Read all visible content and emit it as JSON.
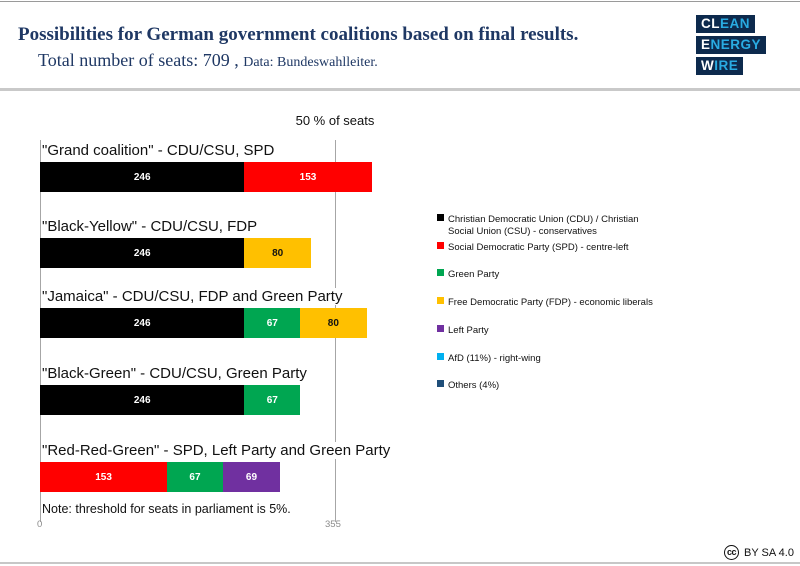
{
  "header": {
    "title": "Possibilities for German government coalitions based on final results.",
    "subtitle_main": "Total number of seats: 709 ,",
    "subtitle_data": "Data: Bundeswahlleiter.",
    "logo": {
      "rows": [
        {
          "white": "CL",
          "blue": "EAN"
        },
        {
          "white": "E",
          "blue": "NERGY"
        },
        {
          "white": "W",
          "blue": "IRE"
        }
      ],
      "bg_color": "#0d2a4d",
      "accent_color": "#29abe2"
    }
  },
  "chart_data": {
    "type": "bar",
    "orientation": "horizontal-stacked",
    "title": "Possibilities for German government coalitions based on final results.",
    "total_seats": 709,
    "xlabel": "",
    "ylabel": "",
    "axis": {
      "x_min": 0,
      "x_gridline_value": 355,
      "gridline_title": "50 % of seats",
      "tick_labels": [
        "0",
        "355"
      ],
      "grid_on": true
    },
    "legend_position": "right",
    "legend": [
      {
        "label": "Christian Democratic Union (CDU) / Christian\nSocial Union (CSU) - conservatives",
        "color": "#000000"
      },
      {
        "label": "Social Democratic Party (SPD) - centre-left",
        "color": "#ff0000"
      },
      {
        "label": "Green Party",
        "color": "#00a651"
      },
      {
        "label": "Free Democratic Party (FDP) - economic liberals",
        "color": "#ffc000"
      },
      {
        "label": "Left Party",
        "color": "#7030a0"
      },
      {
        "label": "AfD (11%) - right-wing",
        "color": "#00b0f0"
      },
      {
        "label": "Others (4%)",
        "color": "#1f4e79"
      }
    ],
    "coalitions": [
      {
        "label": "\"Grand coalition\" - CDU/CSU, SPD",
        "segments": [
          {
            "party": "CDU/CSU",
            "value": 246,
            "color": "#000000",
            "label_color": "#ffffff"
          },
          {
            "party": "SPD",
            "value": 153,
            "color": "#ff0000",
            "label_color": "#ffffff"
          }
        ]
      },
      {
        "label": "\"Black-Yellow\" - CDU/CSU, FDP",
        "segments": [
          {
            "party": "CDU/CSU",
            "value": 246,
            "color": "#000000",
            "label_color": "#ffffff"
          },
          {
            "party": "FDP",
            "value": 80,
            "color": "#ffc000",
            "label_color": "#111111"
          }
        ]
      },
      {
        "label": "\"Jamaica\" - CDU/CSU, FDP and Green Party",
        "segments": [
          {
            "party": "CDU/CSU",
            "value": 246,
            "color": "#000000",
            "label_color": "#ffffff"
          },
          {
            "party": "Green Party",
            "value": 67,
            "color": "#00a651",
            "label_color": "#ffffff"
          },
          {
            "party": "FDP",
            "value": 80,
            "color": "#ffc000",
            "label_color": "#111111"
          }
        ]
      },
      {
        "label": "\"Black-Green\" - CDU/CSU, Green Party",
        "segments": [
          {
            "party": "CDU/CSU",
            "value": 246,
            "color": "#000000",
            "label_color": "#ffffff"
          },
          {
            "party": "Green Party",
            "value": 67,
            "color": "#00a651",
            "label_color": "#ffffff"
          }
        ]
      },
      {
        "label": "\"Red-Red-Green\" - SPD, Left Party and Green Party",
        "segments": [
          {
            "party": "SPD",
            "value": 153,
            "color": "#ff0000",
            "label_color": "#ffffff"
          },
          {
            "party": "Green Party",
            "value": 67,
            "color": "#00a651",
            "label_color": "#ffffff"
          },
          {
            "party": "Left Party",
            "value": 69,
            "color": "#7030a0",
            "label_color": "#ffffff"
          }
        ]
      }
    ],
    "note": "Note: threshold for seats in parliament is 5%."
  },
  "footer": {
    "cc_icon_text": "cc",
    "license": "BY SA 4.0"
  }
}
